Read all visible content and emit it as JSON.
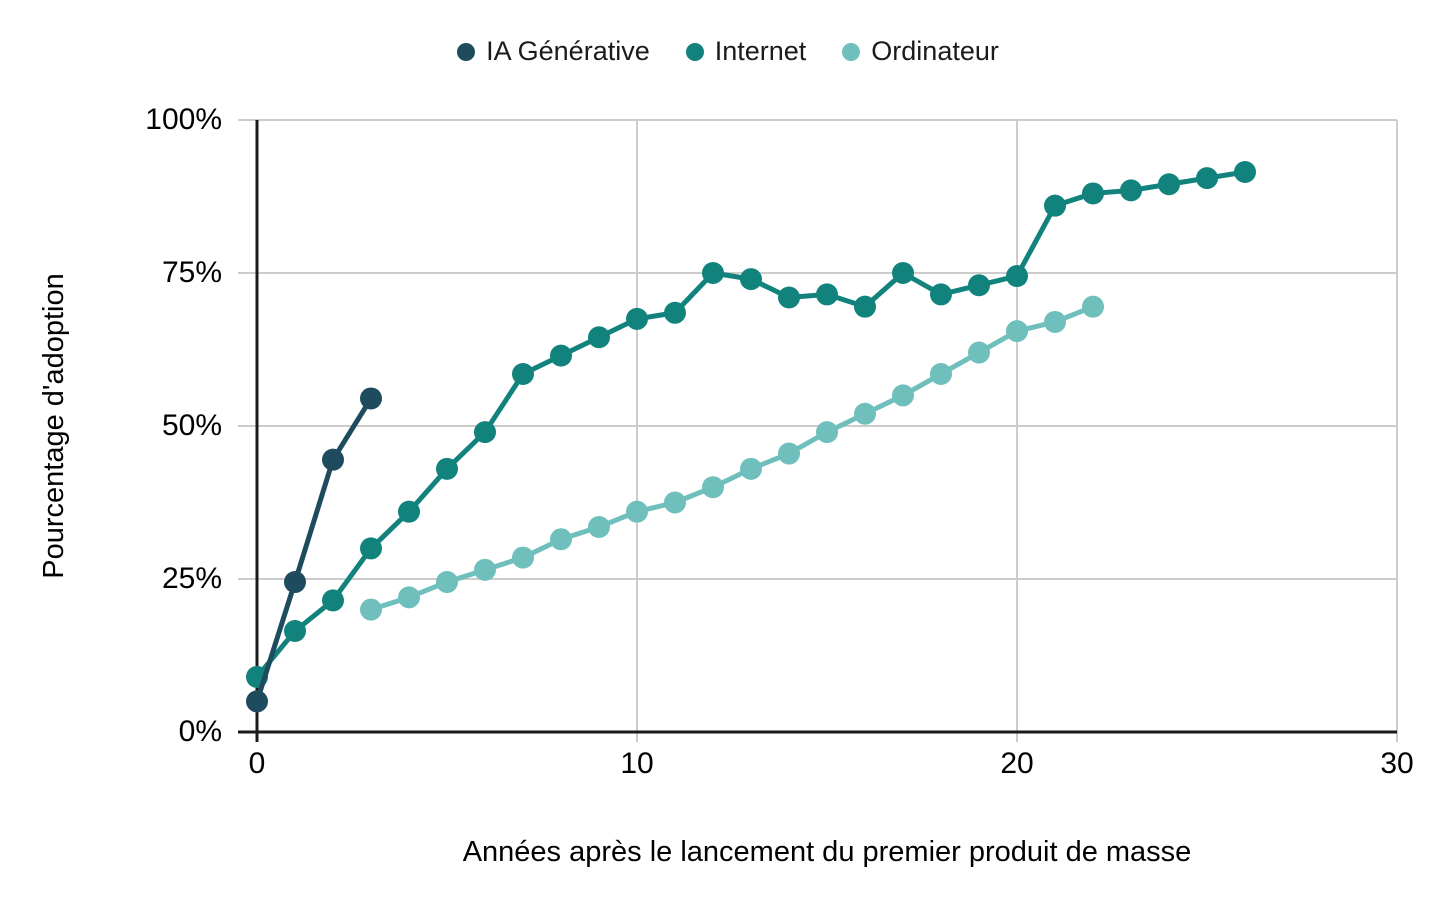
{
  "chart_data": {
    "type": "line",
    "title": "",
    "xlabel": "Années après le lancement du premier produit de masse",
    "ylabel": "Pourcentage d'adoption",
    "x_ticks": [
      "0",
      "10",
      "20",
      "30"
    ],
    "y_ticks": [
      "0%",
      "25%",
      "50%",
      "75%",
      "100%"
    ],
    "xlim": [
      0,
      30
    ],
    "ylim": [
      0,
      100
    ],
    "grid": true,
    "legend_position": "top",
    "colors": {
      "grid": "#cccccc",
      "axis": "#1a1a1a",
      "text": "#000000"
    },
    "series": [
      {
        "name": "IA Générative",
        "color": "#1E4C5E",
        "x": [
          0,
          1,
          2,
          3
        ],
        "values": [
          5,
          24.5,
          44.5,
          54.5
        ]
      },
      {
        "name": "Internet",
        "color": "#12827D",
        "x": [
          0,
          1,
          2,
          3,
          4,
          5,
          6,
          7,
          8,
          9,
          10,
          11,
          12,
          13,
          14,
          15,
          16,
          17,
          18,
          19,
          20,
          21,
          22,
          23,
          24,
          25,
          26
        ],
        "values": [
          9,
          16.5,
          21.5,
          30,
          36,
          43,
          49,
          58.5,
          61.5,
          64.5,
          67.5,
          68.5,
          75,
          74,
          71,
          71.5,
          69.5,
          75,
          71.5,
          73,
          74.5,
          86,
          88,
          88.5,
          89.5,
          90.5,
          91.5
        ]
      },
      {
        "name": "Ordinateur",
        "color": "#6FBFBC",
        "x": [
          3,
          4,
          5,
          6,
          7,
          8,
          9,
          10,
          11,
          12,
          13,
          14,
          15,
          16,
          17,
          18,
          19,
          20,
          21,
          22
        ],
        "values": [
          20,
          22,
          24.5,
          26.5,
          28.5,
          31.5,
          33.5,
          36,
          37.5,
          40,
          43,
          45.5,
          49,
          52,
          55,
          58.5,
          62,
          65.5,
          67,
          69.5
        ]
      }
    ]
  }
}
